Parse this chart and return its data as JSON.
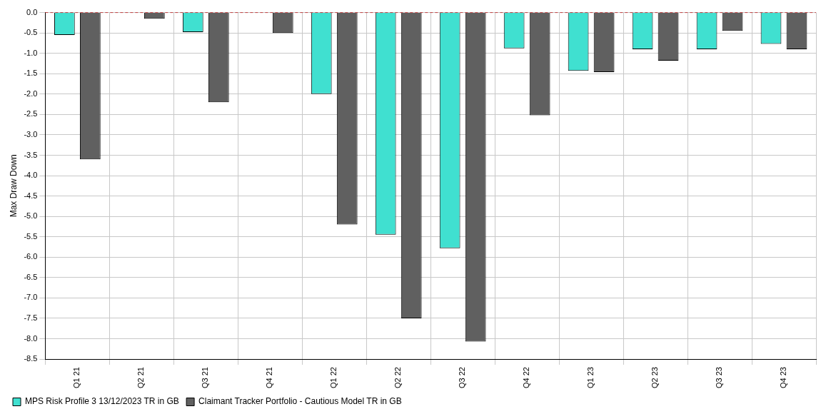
{
  "chart_data": {
    "type": "bar",
    "ylabel": "Max Draw Down",
    "categories": [
      "Q1 21",
      "Q2 21",
      "Q3 21",
      "Q4 21",
      "Q1 22",
      "Q2 22",
      "Q3 22",
      "Q4 22",
      "Q1 23",
      "Q2 23",
      "Q3 23",
      "Q4 23"
    ],
    "series": [
      {
        "name": "MPS Risk Profile 3 13/12/2023 TR in GB",
        "color": "#40e0d0",
        "values": [
          -0.55,
          null,
          -0.48,
          null,
          -2.0,
          -5.45,
          -5.78,
          -0.88,
          -1.43,
          -0.9,
          -0.9,
          -0.77
        ]
      },
      {
        "name": "Claimant Tracker Portfolio - Cautious Model TR in GB",
        "color": "#606060",
        "values": [
          -3.6,
          -0.15,
          -2.2,
          -0.5,
          -5.2,
          -7.5,
          -8.07,
          -2.52,
          -1.46,
          -1.18,
          -0.45,
          -0.9
        ]
      }
    ],
    "ylim": [
      -8.5,
      0
    ],
    "yticks": [
      {
        "value": -8.5,
        "label": "-8.5"
      },
      {
        "value": -8,
        "label": "-8.0"
      },
      {
        "value": -7.5,
        "label": "-7.5"
      },
      {
        "value": -7,
        "label": "-7.0"
      },
      {
        "value": -6.5,
        "label": "-6.5"
      },
      {
        "value": -6,
        "label": "-6.0"
      },
      {
        "value": -5.5,
        "label": "-5.5"
      },
      {
        "value": -5,
        "label": "-5.0"
      },
      {
        "value": -4.5,
        "label": "-4.5"
      },
      {
        "value": -4,
        "label": "-4.0"
      },
      {
        "value": -3.5,
        "label": "-3.5"
      },
      {
        "value": -3,
        "label": "-3.0"
      },
      {
        "value": -2.5,
        "label": "-2.5"
      },
      {
        "value": -2,
        "label": "-2.0"
      },
      {
        "value": -1.5,
        "label": "-1.5"
      },
      {
        "value": -1,
        "label": "-1.0"
      },
      {
        "value": -0.5,
        "label": "-0.5"
      },
      {
        "value": 0,
        "label": "0.0"
      }
    ],
    "ref_lines": [
      {
        "axis": "y",
        "value": 0,
        "color": "#c04040",
        "line_style": "dashed"
      }
    ],
    "grid": true,
    "legend": "bottom left"
  }
}
